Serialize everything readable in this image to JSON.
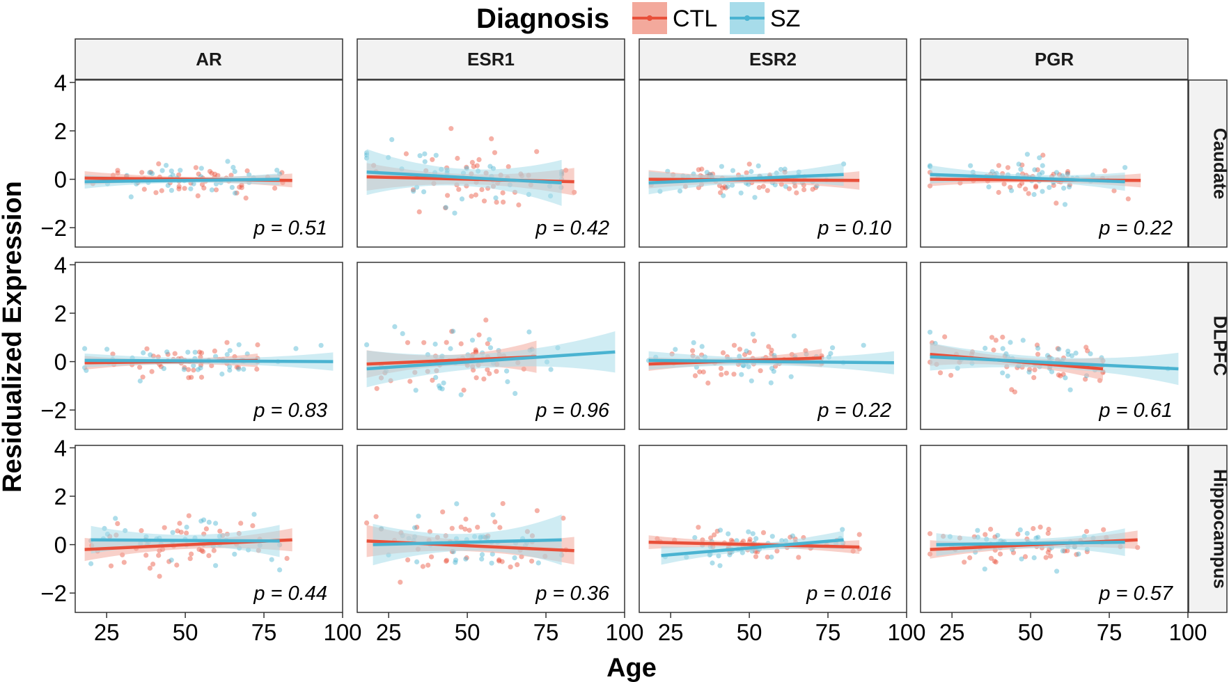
{
  "chart_data": {
    "type": "scatter",
    "title": "",
    "xlabel": "Age",
    "ylabel": "Residualized Expression",
    "xlim": [
      15,
      100
    ],
    "ylim": [
      -2.8,
      4.1
    ],
    "x_ticks": [
      25,
      50,
      75,
      100
    ],
    "x_tick_labels": [
      "25",
      "50",
      "75",
      "100"
    ],
    "y_ticks": [
      -2,
      0,
      2,
      4
    ],
    "y_tick_labels": [
      "−2",
      "0",
      "2",
      "4"
    ],
    "grid": false,
    "legend": {
      "title": "Diagnosis",
      "position": "top",
      "entries": [
        {
          "label": "CTL",
          "color": "#e8503a",
          "fill": "#f3a99c"
        },
        {
          "label": "SZ",
          "color": "#4ab3d1",
          "fill": "#a7dcea"
        }
      ]
    },
    "columns": [
      "AR",
      "ESR1",
      "ESR2",
      "PGR"
    ],
    "rows": [
      "Caudate",
      "DLPFC",
      "Hippocampus"
    ],
    "panels": [
      {
        "row": "Caudate",
        "col": "AR",
        "p_label": "p = 0.51",
        "ctl_fit": {
          "x": [
            18,
            84
          ],
          "y": [
            0.05,
            -0.05
          ],
          "se": [
            0.15,
            0.15
          ],
          "spread": 0.3,
          "n": 48
        },
        "sz_fit": {
          "x": [
            18,
            80
          ],
          "y": [
            -0.1,
            0.0
          ],
          "se": [
            0.15,
            0.13
          ],
          "spread": 0.35,
          "n": 38
        }
      },
      {
        "row": "Caudate",
        "col": "ESR1",
        "p_label": "p = 0.42",
        "ctl_fit": {
          "x": [
            18,
            84
          ],
          "y": [
            0.1,
            -0.1
          ],
          "se": [
            0.3,
            0.3
          ],
          "spread": 0.7,
          "n": 48
        },
        "sz_fit": {
          "x": [
            18,
            80
          ],
          "y": [
            0.3,
            -0.15
          ],
          "se": [
            0.5,
            0.5
          ],
          "spread": 0.75,
          "n": 38
        }
      },
      {
        "row": "Caudate",
        "col": "ESR2",
        "p_label": "p = 0.10",
        "ctl_fit": {
          "x": [
            18,
            85
          ],
          "y": [
            0.0,
            -0.05
          ],
          "se": [
            0.2,
            0.2
          ],
          "spread": 0.35,
          "n": 48
        },
        "sz_fit": {
          "x": [
            18,
            80
          ],
          "y": [
            -0.15,
            0.2
          ],
          "se": [
            0.25,
            0.25
          ],
          "spread": 0.4,
          "n": 38
        }
      },
      {
        "row": "Caudate",
        "col": "PGR",
        "p_label": "p = 0.22",
        "ctl_fit": {
          "x": [
            18,
            85
          ],
          "y": [
            0.0,
            -0.05
          ],
          "se": [
            0.15,
            0.15
          ],
          "spread": 0.35,
          "n": 48
        },
        "sz_fit": {
          "x": [
            18,
            80
          ],
          "y": [
            0.2,
            -0.1
          ],
          "se": [
            0.2,
            0.2
          ],
          "spread": 0.35,
          "n": 38
        }
      },
      {
        "row": "DLPFC",
        "col": "AR",
        "p_label": "p = 0.83",
        "ctl_fit": {
          "x": [
            18,
            73
          ],
          "y": [
            -0.05,
            0.05
          ],
          "se": [
            0.15,
            0.15
          ],
          "spread": 0.3,
          "n": 48
        },
        "sz_fit": {
          "x": [
            18,
            97
          ],
          "y": [
            0.05,
            0.0
          ],
          "se": [
            0.15,
            0.2
          ],
          "spread": 0.35,
          "n": 38
        }
      },
      {
        "row": "DLPFC",
        "col": "ESR1",
        "p_label": "p = 0.96",
        "ctl_fit": {
          "x": [
            18,
            72
          ],
          "y": [
            -0.1,
            0.2
          ],
          "se": [
            0.3,
            0.35
          ],
          "spread": 0.55,
          "n": 48
        },
        "sz_fit": {
          "x": [
            18,
            97
          ],
          "y": [
            -0.3,
            0.4
          ],
          "se": [
            0.4,
            0.45
          ],
          "spread": 0.75,
          "n": 38
        }
      },
      {
        "row": "DLPFC",
        "col": "ESR2",
        "p_label": "p = 0.22",
        "ctl_fit": {
          "x": [
            18,
            73
          ],
          "y": [
            -0.1,
            0.15
          ],
          "se": [
            0.15,
            0.2
          ],
          "spread": 0.35,
          "n": 48
        },
        "sz_fit": {
          "x": [
            18,
            96
          ],
          "y": [
            0.05,
            -0.05
          ],
          "se": [
            0.2,
            0.25
          ],
          "spread": 0.45,
          "n": 38
        }
      },
      {
        "row": "DLPFC",
        "col": "PGR",
        "p_label": "p = 0.61",
        "ctl_fit": {
          "x": [
            18,
            73
          ],
          "y": [
            0.3,
            -0.3
          ],
          "se": [
            0.25,
            0.25
          ],
          "spread": 0.5,
          "n": 48
        },
        "sz_fit": {
          "x": [
            18,
            97
          ],
          "y": [
            0.2,
            -0.3
          ],
          "se": [
            0.3,
            0.35
          ],
          "spread": 0.55,
          "n": 38
        }
      },
      {
        "row": "Hippocampus",
        "col": "AR",
        "p_label": "p = 0.44",
        "ctl_fit": {
          "x": [
            18,
            84
          ],
          "y": [
            -0.2,
            0.2
          ],
          "se": [
            0.25,
            0.25
          ],
          "spread": 0.5,
          "n": 48
        },
        "sz_fit": {
          "x": [
            20,
            80
          ],
          "y": [
            0.2,
            0.15
          ],
          "se": [
            0.3,
            0.35
          ],
          "spread": 0.45,
          "n": 38
        }
      },
      {
        "row": "Hippocampus",
        "col": "ESR1",
        "p_label": "p = 0.36",
        "ctl_fit": {
          "x": [
            18,
            84
          ],
          "y": [
            0.15,
            -0.25
          ],
          "se": [
            0.35,
            0.3
          ],
          "spread": 0.7,
          "n": 48
        },
        "sz_fit": {
          "x": [
            20,
            80
          ],
          "y": [
            0.0,
            0.2
          ],
          "se": [
            0.45,
            0.55
          ],
          "spread": 0.7,
          "n": 38
        }
      },
      {
        "row": "Hippocampus",
        "col": "ESR2",
        "p_label": "p = 0.016",
        "ctl_fit": {
          "x": [
            18,
            85
          ],
          "y": [
            0.1,
            -0.1
          ],
          "se": [
            0.15,
            0.15
          ],
          "spread": 0.3,
          "n": 48
        },
        "sz_fit": {
          "x": [
            22,
            80
          ],
          "y": [
            -0.45,
            0.2
          ],
          "se": [
            0.2,
            0.2
          ],
          "spread": 0.35,
          "n": 38
        }
      },
      {
        "row": "Hippocampus",
        "col": "PGR",
        "p_label": "p = 0.57",
        "ctl_fit": {
          "x": [
            18,
            84
          ],
          "y": [
            -0.2,
            0.2
          ],
          "se": [
            0.2,
            0.2
          ],
          "spread": 0.45,
          "n": 48
        },
        "sz_fit": {
          "x": [
            20,
            80
          ],
          "y": [
            0.0,
            0.1
          ],
          "se": [
            0.25,
            0.3
          ],
          "spread": 0.4,
          "n": 38
        }
      }
    ]
  }
}
